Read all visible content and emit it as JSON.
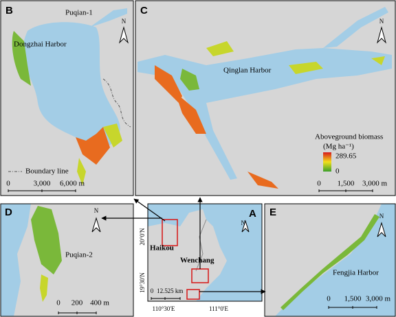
{
  "panels": {
    "B": {
      "letter": "B",
      "places": [
        "Puqian-1",
        "Dongzhai Harbor"
      ],
      "north": "N",
      "boundary": "Boundary line",
      "scale": [
        "0",
        "3,000",
        "6,000 m"
      ]
    },
    "C": {
      "letter": "C",
      "places": [
        "Qinglan Harbor"
      ],
      "north": "N",
      "legend_title": "Aboveground biomass",
      "legend_unit": "(Mg ha⁻¹)",
      "legend_max": "289.65",
      "legend_min": "0",
      "scale": [
        "0",
        "1,500",
        "3,000 m"
      ]
    },
    "D": {
      "letter": "D",
      "places": [
        "Puqian-2"
      ],
      "north": "N",
      "scale": [
        "0",
        "200",
        "400 m"
      ]
    },
    "A": {
      "letter": "A",
      "places": [
        "Haikou",
        "Wenchang"
      ],
      "north": "N",
      "lat": [
        "20°0'N",
        "19°30'N"
      ],
      "lon": [
        "110°30'E",
        "111°0'E"
      ],
      "scale": [
        "0",
        "12.5",
        "25 km"
      ]
    },
    "E": {
      "letter": "E",
      "places": [
        "Fengjia Harbor"
      ],
      "north": "N",
      "scale": [
        "0",
        "1,500",
        "3,000 m"
      ]
    }
  }
}
